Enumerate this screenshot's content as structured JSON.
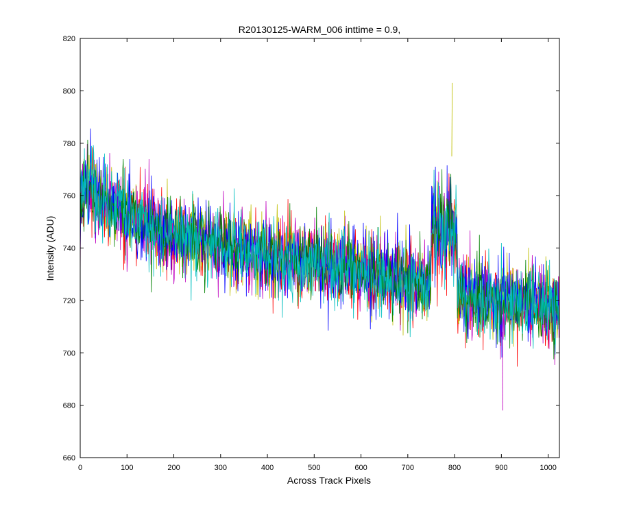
{
  "chart_data": {
    "type": "line",
    "title": "R20130125-WARM_006 inttime = 0.9,",
    "xlabel": "Across Track Pixels",
    "ylabel": "Intensity (ADU)",
    "xlim": [
      0,
      1024
    ],
    "ylim": [
      660,
      820
    ],
    "x_ticks": [
      0,
      100,
      200,
      300,
      400,
      500,
      600,
      700,
      800,
      900,
      1000
    ],
    "y_ticks": [
      660,
      680,
      700,
      720,
      740,
      760,
      780,
      800,
      820
    ],
    "grid": false,
    "legend": "none",
    "n_points_per_series": 1024,
    "trend": {
      "x": [
        0,
        10,
        50,
        100,
        150,
        200,
        300,
        400,
        500,
        600,
        700,
        750,
        800,
        850,
        900,
        950,
        1024
      ],
      "y": [
        758,
        764,
        758,
        753,
        748,
        745,
        741,
        737,
        735,
        732,
        727,
        726,
        724,
        722,
        720,
        719,
        717
      ]
    },
    "noise_amplitude_adu": 10,
    "feature": {
      "x_range": [
        750,
        805
      ],
      "peak_y": 803,
      "peak_x": 795
    },
    "extremes": {
      "max": {
        "x": 795,
        "y": 803
      },
      "min": {
        "x": 903,
        "y": 678
      }
    },
    "series_colors": [
      "#ff0000",
      "#bfbf00",
      "#bf00bf",
      "#0000ff",
      "#008000",
      "#00bfbf"
    ]
  }
}
